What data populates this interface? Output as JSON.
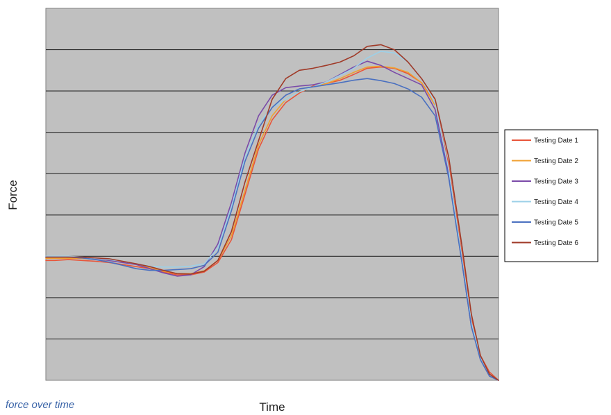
{
  "caption": "force over time",
  "chart_data": {
    "type": "line",
    "title": "",
    "xlabel": "Time",
    "ylabel": "Force",
    "x": [
      0,
      2,
      5,
      8,
      11,
      14,
      17,
      20,
      23,
      26,
      29,
      32,
      35,
      38,
      41,
      44,
      47,
      50,
      53,
      56,
      59,
      62,
      65,
      68,
      71,
      74,
      77,
      80,
      83,
      86,
      89,
      92,
      94,
      96,
      98,
      100
    ],
    "xlim": [
      0,
      100
    ],
    "ylim": [
      0,
      9
    ],
    "grid": true,
    "legend_position": "right",
    "colors": {
      "plot_background": "#c0c0c0",
      "gridline": "#2b2b2b",
      "caption": "#3a64a8"
    },
    "series": [
      {
        "name": "Testing Date 1",
        "color": "#e8553a",
        "values": [
          2.9,
          2.9,
          2.92,
          2.9,
          2.88,
          2.85,
          2.8,
          2.75,
          2.7,
          2.62,
          2.55,
          2.55,
          2.62,
          2.85,
          3.4,
          4.5,
          5.6,
          6.3,
          6.72,
          6.95,
          7.12,
          7.18,
          7.26,
          7.4,
          7.55,
          7.58,
          7.55,
          7.42,
          7.2,
          6.7,
          5.2,
          3.0,
          1.5,
          0.6,
          0.2,
          0.0
        ]
      },
      {
        "name": "Testing Date 2",
        "color": "#f0a030",
        "values": [
          2.95,
          2.95,
          2.95,
          2.95,
          2.93,
          2.9,
          2.86,
          2.8,
          2.72,
          2.64,
          2.58,
          2.58,
          2.65,
          2.9,
          3.5,
          4.6,
          5.7,
          6.4,
          6.8,
          6.98,
          7.1,
          7.18,
          7.3,
          7.45,
          7.58,
          7.6,
          7.56,
          7.45,
          7.2,
          6.65,
          5.1,
          2.9,
          1.4,
          0.55,
          0.15,
          0.0
        ]
      },
      {
        "name": "Testing Date 3",
        "color": "#7a4aa8",
        "values": [
          3.0,
          3.0,
          2.98,
          2.96,
          2.94,
          2.9,
          2.85,
          2.8,
          2.7,
          2.6,
          2.52,
          2.55,
          2.75,
          3.3,
          4.3,
          5.5,
          6.4,
          6.9,
          7.08,
          7.12,
          7.15,
          7.22,
          7.4,
          7.58,
          7.72,
          7.62,
          7.45,
          7.3,
          7.15,
          6.55,
          5.0,
          2.8,
          1.3,
          0.5,
          0.1,
          0.0
        ]
      },
      {
        "name": "Testing Date 4",
        "color": "#9cd0e8",
        "values": [
          3.0,
          3.0,
          3.0,
          2.98,
          2.95,
          2.92,
          2.88,
          2.82,
          2.76,
          2.74,
          2.74,
          2.76,
          2.82,
          3.2,
          4.2,
          5.4,
          6.2,
          6.6,
          6.8,
          6.98,
          7.1,
          7.22,
          7.38,
          7.55,
          7.8,
          7.96,
          7.92,
          7.7,
          7.3,
          6.7,
          5.1,
          2.9,
          1.4,
          0.55,
          0.15,
          0.0
        ]
      },
      {
        "name": "Testing Date 5",
        "color": "#4a70c0",
        "values": [
          2.98,
          2.98,
          2.98,
          2.96,
          2.92,
          2.86,
          2.78,
          2.7,
          2.66,
          2.66,
          2.68,
          2.7,
          2.78,
          3.1,
          4.1,
          5.3,
          6.1,
          6.6,
          6.9,
          7.05,
          7.1,
          7.15,
          7.2,
          7.26,
          7.3,
          7.25,
          7.18,
          7.05,
          6.85,
          6.4,
          4.9,
          2.8,
          1.3,
          0.5,
          0.1,
          0.0
        ]
      },
      {
        "name": "Testing Date 6",
        "color": "#a03a28",
        "values": [
          2.98,
          2.98,
          2.98,
          2.98,
          2.96,
          2.94,
          2.88,
          2.82,
          2.75,
          2.66,
          2.58,
          2.57,
          2.64,
          2.9,
          3.6,
          4.8,
          5.8,
          6.8,
          7.3,
          7.5,
          7.55,
          7.62,
          7.7,
          7.85,
          8.08,
          8.12,
          8.0,
          7.7,
          7.3,
          6.8,
          5.4,
          3.2,
          1.6,
          0.6,
          0.15,
          0.0
        ]
      }
    ]
  }
}
